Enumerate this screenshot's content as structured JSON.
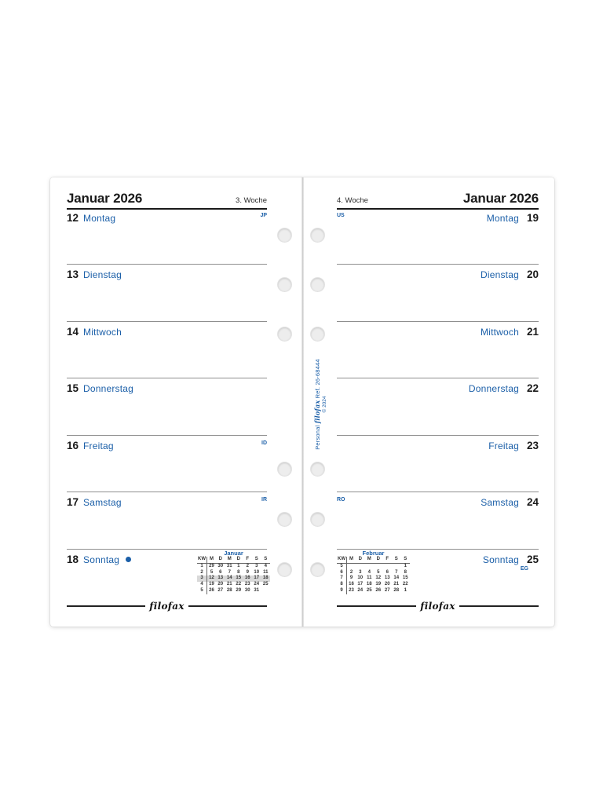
{
  "colors": {
    "accent_blue": "#1b5fa8",
    "ink_black": "#1a1a1a",
    "separator_gray": "#8f8f8f",
    "highlight_gray": "#d9d9d9",
    "hole_gray": "#ededed",
    "paper_white": "#ffffff"
  },
  "spine": {
    "prefix": "Personal",
    "brand": "filofax",
    "ref": "Ref. 26-68444",
    "copyright": "© 2024"
  },
  "left_page": {
    "header": {
      "month_year": "Januar 2026",
      "week_label": "3. Woche"
    },
    "days": [
      {
        "number": "12",
        "name": "Montag",
        "note": "JP"
      },
      {
        "number": "13",
        "name": "Dienstag"
      },
      {
        "number": "14",
        "name": "Mittwoch"
      },
      {
        "number": "15",
        "name": "Donnerstag"
      },
      {
        "number": "16",
        "name": "Freitag",
        "note": "ID"
      },
      {
        "number": "17",
        "name": "Samstag",
        "note": "IR"
      },
      {
        "number": "18",
        "name": "Sonntag",
        "new_moon": true
      }
    ],
    "mini_calendar": {
      "title": "Januar",
      "col_headers": [
        "KW",
        "M",
        "D",
        "M",
        "D",
        "F",
        "S",
        "S"
      ],
      "rows": [
        {
          "kw": "1",
          "cells": [
            "29",
            "30",
            "31",
            "1",
            "2",
            "3",
            "4"
          ],
          "highlight": false
        },
        {
          "kw": "2",
          "cells": [
            "5",
            "6",
            "7",
            "8",
            "9",
            "10",
            "11"
          ],
          "highlight": false
        },
        {
          "kw": "3",
          "cells": [
            "12",
            "13",
            "14",
            "15",
            "16",
            "17",
            "18"
          ],
          "highlight": true
        },
        {
          "kw": "4",
          "cells": [
            "19",
            "20",
            "21",
            "22",
            "23",
            "24",
            "25"
          ],
          "highlight": false
        },
        {
          "kw": "5",
          "cells": [
            "26",
            "27",
            "28",
            "29",
            "30",
            "31",
            ""
          ],
          "highlight": false
        }
      ]
    },
    "logo": "filofax"
  },
  "right_page": {
    "header": {
      "week_label": "4. Woche",
      "month_year": "Januar 2026"
    },
    "days": [
      {
        "number": "19",
        "name": "Montag",
        "note": "US",
        "note_pos": "left"
      },
      {
        "number": "20",
        "name": "Dienstag"
      },
      {
        "number": "21",
        "name": "Mittwoch"
      },
      {
        "number": "22",
        "name": "Donnerstag"
      },
      {
        "number": "23",
        "name": "Freitag"
      },
      {
        "number": "24",
        "name": "Samstag",
        "note": "RO",
        "note_pos": "left"
      },
      {
        "number": "25",
        "name": "Sonntag",
        "note": "EG",
        "note_pos": "below"
      }
    ],
    "mini_calendar": {
      "title": "Februar",
      "col_headers": [
        "KW",
        "M",
        "D",
        "M",
        "D",
        "F",
        "S",
        "S"
      ],
      "rows": [
        {
          "kw": "5",
          "cells": [
            "",
            "",
            "",
            "",
            "",
            "",
            "1"
          ],
          "highlight": false
        },
        {
          "kw": "6",
          "cells": [
            "2",
            "3",
            "4",
            "5",
            "6",
            "7",
            "8"
          ],
          "highlight": false
        },
        {
          "kw": "7",
          "cells": [
            "9",
            "10",
            "11",
            "12",
            "13",
            "14",
            "15"
          ],
          "highlight": false
        },
        {
          "kw": "8",
          "cells": [
            "16",
            "17",
            "18",
            "19",
            "20",
            "21",
            "22"
          ],
          "highlight": false
        },
        {
          "kw": "9",
          "cells": [
            "23",
            "24",
            "25",
            "26",
            "27",
            "28",
            "1"
          ],
          "highlight": false
        }
      ]
    },
    "logo": "filofax"
  }
}
